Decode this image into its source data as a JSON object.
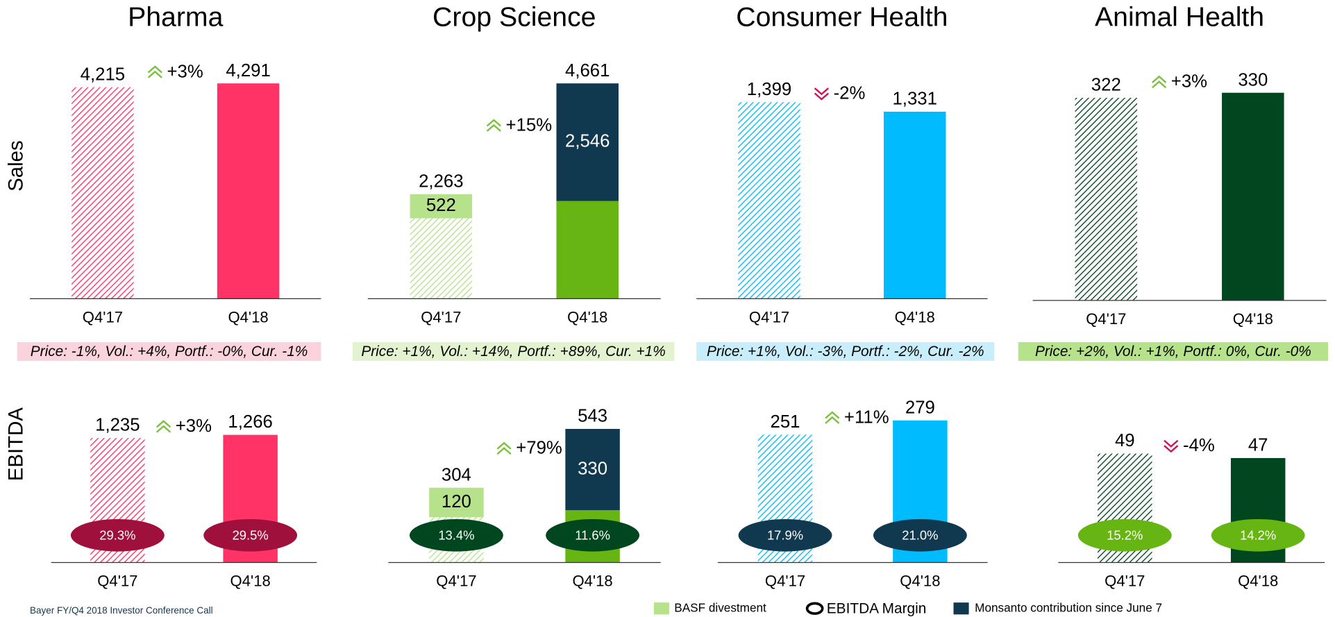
{
  "row_labels": [
    "Sales",
    "EBITDA"
  ],
  "footer": "Bayer FY/Q4 2018 Investor Conference Call",
  "margin_legend": "EBITDA Margin",
  "drivers": [
    {
      "text": "Price: -1%, Vol.: +4%, Portf.: -0%, Cur. -1%",
      "color": "#fbd3dc"
    },
    {
      "text": "Price: +1%, Vol.: +14%, Portf.: +89%, Cur. +1%",
      "color": "#e3f3cf"
    },
    {
      "text": "Price: +1%, Vol.: -3%, Portf.: -2%, Cur. -2%",
      "color": "#c9eefb"
    },
    {
      "text": "Price: +2%, Vol.: +1%, Portf.: 0%, Cur. -0%",
      "color": "#b5e28a"
    }
  ],
  "chart_data": [
    {
      "type": "bar",
      "title": "Pharma",
      "categories": [
        "Q4'17",
        "Q4'18"
      ],
      "series": [
        {
          "colors": [
            "#ff3366",
            "#ff3366"
          ],
          "patterns": [
            "hatch",
            "solid"
          ],
          "values": [
            4215,
            4291
          ],
          "value_labels": [
            "4,215",
            "4,291"
          ]
        }
      ],
      "change_label": "+3%",
      "change_direction": "up"
    },
    {
      "type": "bar",
      "title": "Crop Science",
      "categories": [
        "Q4'17",
        "Q4'18"
      ],
      "series": [
        {
          "colors": [
            "#b5e28a",
            "#66b512"
          ],
          "patterns": [
            "hatch",
            "solid"
          ],
          "values": [
            1741,
            2115
          ]
        },
        {
          "name": "BASF divestment",
          "color": "#b5e28a",
          "values": [
            522,
            null
          ],
          "value_labels": [
            "522",
            null
          ]
        },
        {
          "name": "Monsanto contribution since June 7",
          "color": "#10384f",
          "values": [
            null,
            2546
          ],
          "value_labels": [
            null,
            "2,546"
          ]
        }
      ],
      "totals": [
        2263,
        4661
      ],
      "total_labels": [
        "2,263",
        "4,661"
      ],
      "change_label": "+15%",
      "change_direction": "up"
    },
    {
      "type": "bar",
      "title": "Consumer Health",
      "categories": [
        "Q4'17",
        "Q4'18"
      ],
      "series": [
        {
          "colors": [
            "#00bcff",
            "#00bcff"
          ],
          "patterns": [
            "hatch",
            "solid"
          ],
          "values": [
            1399,
            1331
          ],
          "value_labels": [
            "1,399",
            "1,331"
          ]
        }
      ],
      "change_label": "-2%",
      "change_direction": "down"
    },
    {
      "type": "bar",
      "title": "Animal Health",
      "categories": [
        "Q4'17",
        "Q4'18"
      ],
      "series": [
        {
          "colors": [
            "#00461f",
            "#00461f"
          ],
          "patterns": [
            "hatch",
            "solid"
          ],
          "values": [
            322,
            330
          ],
          "value_labels": [
            "322",
            "330"
          ]
        }
      ],
      "change_label": "+3%",
      "change_direction": "up"
    },
    {
      "type": "bar",
      "categories": [
        "Q4'17",
        "Q4'18"
      ],
      "series": [
        {
          "colors": [
            "#ff3366",
            "#ff3366"
          ],
          "patterns": [
            "hatch",
            "solid"
          ],
          "values": [
            1235,
            1266
          ],
          "value_labels": [
            "1,235",
            "1,266"
          ]
        }
      ],
      "change_label": "+3%",
      "change_direction": "up",
      "margins": [
        29.3,
        29.5
      ],
      "margin_labels": [
        "29.3%",
        "29.5%"
      ],
      "margin_color": "#a0103c"
    },
    {
      "type": "bar",
      "categories": [
        "Q4'17",
        "Q4'18"
      ],
      "series": [
        {
          "colors": [
            "#b5e28a",
            "#66b512"
          ],
          "patterns": [
            "hatch",
            "solid"
          ],
          "values": [
            184,
            213
          ]
        },
        {
          "name": "BASF divestment",
          "color": "#b5e28a",
          "values": [
            120,
            null
          ],
          "value_labels": [
            "120",
            null
          ]
        },
        {
          "name": "Monsanto contribution since June 7",
          "color": "#10384f",
          "values": [
            null,
            330
          ],
          "value_labels": [
            null,
            "330"
          ]
        }
      ],
      "totals": [
        304,
        543
      ],
      "total_labels": [
        "304",
        "543"
      ],
      "change_label": "+79%",
      "change_direction": "up",
      "margins": [
        13.4,
        11.6
      ],
      "margin_labels": [
        "13.4%",
        "11.6%"
      ],
      "margin_color": "#00461f"
    },
    {
      "type": "bar",
      "categories": [
        "Q4'17",
        "Q4'18"
      ],
      "series": [
        {
          "colors": [
            "#00bcff",
            "#00bcff"
          ],
          "patterns": [
            "hatch",
            "solid"
          ],
          "values": [
            251,
            279
          ],
          "value_labels": [
            "251",
            "279"
          ]
        }
      ],
      "change_label": "+11%",
      "change_direction": "up",
      "margins": [
        17.9,
        21.0
      ],
      "margin_labels": [
        "17.9%",
        "21.0%"
      ],
      "margin_color": "#10384f"
    },
    {
      "type": "bar",
      "categories": [
        "Q4'17",
        "Q4'18"
      ],
      "series": [
        {
          "colors": [
            "#00461f",
            "#00461f"
          ],
          "patterns": [
            "hatch",
            "solid"
          ],
          "values": [
            49,
            47
          ],
          "value_labels": [
            "49",
            "47"
          ]
        }
      ],
      "change_label": "-4%",
      "change_direction": "down",
      "margins": [
        15.2,
        14.2
      ],
      "margin_labels": [
        "15.2%",
        "14.2%"
      ],
      "margin_color": "#66b512"
    }
  ]
}
